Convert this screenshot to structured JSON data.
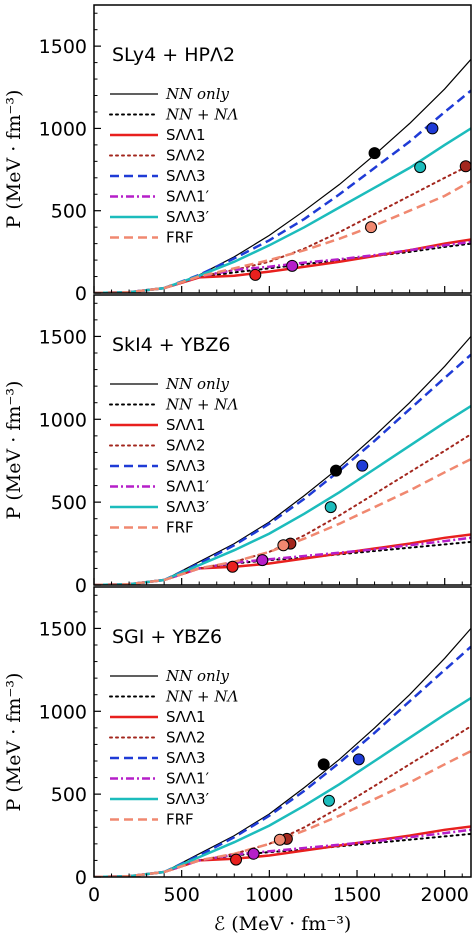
{
  "chart_data": [
    {
      "type": "line",
      "title": "SLy4 + HPΛ2",
      "xlabel": "ℰ (MeV · fm⁻³)",
      "ylabel": "P (MeV · fm⁻³)",
      "xlim": [
        0,
        2150
      ],
      "ylim": [
        0,
        1750
      ],
      "xticks": [
        "0",
        "500",
        "1000",
        "1500",
        "2000"
      ],
      "yticks": [
        "0",
        "500",
        "1000",
        "1500"
      ],
      "legend_position": "left",
      "series": [
        {
          "name": "NN only",
          "color": "#000000",
          "dash": "solid",
          "width": 1.2,
          "x": [
            0,
            200,
            400,
            600,
            800,
            1000,
            1200,
            1400,
            1600,
            1800,
            2000,
            2150
          ],
          "y": [
            0,
            5,
            30,
            110,
            220,
            350,
            500,
            660,
            840,
            1030,
            1240,
            1420
          ],
          "marker": [
            1600,
            850
          ]
        },
        {
          "name": "NN + NΛ",
          "color": "#000000",
          "dash": "dot",
          "width": 2,
          "x": [
            0,
            200,
            400,
            600,
            800,
            1000,
            1200,
            1400,
            1600,
            1800,
            2000,
            2150
          ],
          "y": [
            0,
            5,
            30,
            95,
            125,
            150,
            175,
            200,
            225,
            250,
            280,
            300
          ]
        },
        {
          "name": "SΛΛ1",
          "color": "#e8201e",
          "dash": "solid",
          "width": 2.5,
          "x": [
            0,
            200,
            400,
            600,
            800,
            1000,
            1200,
            1400,
            1600,
            1800,
            2000,
            2150
          ],
          "y": [
            0,
            5,
            30,
            95,
            105,
            130,
            160,
            190,
            225,
            260,
            300,
            325
          ],
          "marker": [
            920,
            110
          ]
        },
        {
          "name": "SΛΛ2",
          "color": "#a3271e",
          "dash": "dot",
          "width": 2,
          "x": [
            0,
            200,
            400,
            600,
            800,
            1000,
            1200,
            1400,
            1600,
            1800,
            2000,
            2150
          ],
          "y": [
            0,
            5,
            30,
            100,
            140,
            190,
            270,
            370,
            480,
            590,
            700,
            780
          ],
          "marker": [
            2120,
            770
          ]
        },
        {
          "name": "SΛΛ3",
          "color": "#1f3bd6",
          "dash": "dash",
          "width": 2.5,
          "x": [
            0,
            200,
            400,
            600,
            800,
            1000,
            1200,
            1400,
            1600,
            1800,
            2000,
            2150
          ],
          "y": [
            0,
            5,
            30,
            110,
            210,
            320,
            450,
            600,
            760,
            920,
            1100,
            1230
          ],
          "marker": [
            1930,
            1000
          ]
        },
        {
          "name": "SΛΛ1′",
          "color": "#b51fc9",
          "dash": "dashdot",
          "width": 2.5,
          "x": [
            0,
            200,
            400,
            600,
            800,
            1000,
            1200,
            1400,
            1600,
            1800,
            2000,
            2150
          ],
          "y": [
            0,
            5,
            30,
            100,
            140,
            160,
            185,
            205,
            230,
            260,
            290,
            310
          ],
          "marker": [
            1130,
            165
          ]
        },
        {
          "name": "SΛΛ3′",
          "color": "#1cbcbc",
          "dash": "solid",
          "width": 2.5,
          "x": [
            0,
            200,
            400,
            600,
            800,
            1000,
            1200,
            1400,
            1600,
            1800,
            2000,
            2150
          ],
          "y": [
            0,
            5,
            30,
            105,
            190,
            290,
            400,
            520,
            640,
            760,
            900,
            1000
          ],
          "marker": [
            1860,
            765
          ]
        },
        {
          "name": "FRF",
          "color": "#f08870",
          "dash": "dash",
          "width": 2.5,
          "x": [
            0,
            200,
            400,
            600,
            800,
            1000,
            1200,
            1400,
            1600,
            1800,
            2000,
            2150
          ],
          "y": [
            0,
            5,
            30,
            100,
            150,
            200,
            260,
            330,
            410,
            500,
            590,
            680
          ],
          "marker": [
            1580,
            400
          ]
        }
      ]
    },
    {
      "type": "line",
      "title": "SkI4 + YBZ6",
      "xlabel": "ℰ (MeV · fm⁻³)",
      "ylabel": "P (MeV · fm⁻³)",
      "xlim": [
        0,
        2150
      ],
      "ylim": [
        0,
        1750
      ],
      "xticks": [
        "0",
        "500",
        "1000",
        "1500",
        "2000"
      ],
      "yticks": [
        "0",
        "500",
        "1000",
        "1500"
      ],
      "legend_position": "left",
      "series": [
        {
          "name": "NN only",
          "color": "#000000",
          "dash": "solid",
          "width": 1.2,
          "x": [
            0,
            200,
            400,
            600,
            800,
            1000,
            1200,
            1400,
            1600,
            1800,
            2000,
            2150
          ],
          "y": [
            0,
            5,
            30,
            140,
            250,
            380,
            540,
            710,
            900,
            1100,
            1320,
            1500
          ],
          "marker": [
            1380,
            690
          ]
        },
        {
          "name": "NN + NΛ",
          "color": "#000000",
          "dash": "dot",
          "width": 2,
          "x": [
            0,
            200,
            400,
            600,
            800,
            1000,
            1200,
            1400,
            1600,
            1800,
            2000,
            2150
          ],
          "y": [
            0,
            5,
            30,
            100,
            130,
            150,
            165,
            185,
            205,
            225,
            245,
            260
          ]
        },
        {
          "name": "SΛΛ1",
          "color": "#e8201e",
          "dash": "solid",
          "width": 2.5,
          "x": [
            0,
            200,
            400,
            600,
            800,
            1000,
            1200,
            1400,
            1600,
            1800,
            2000,
            2150
          ],
          "y": [
            0,
            5,
            30,
            100,
            110,
            130,
            160,
            190,
            220,
            250,
            285,
            305
          ],
          "marker": [
            790,
            110
          ]
        },
        {
          "name": "SΛΛ2",
          "color": "#a3271e",
          "dash": "dot",
          "width": 2,
          "x": [
            0,
            200,
            400,
            600,
            800,
            1000,
            1200,
            1400,
            1600,
            1800,
            2000,
            2150
          ],
          "y": [
            0,
            5,
            30,
            100,
            140,
            200,
            300,
            420,
            550,
            680,
            810,
            910
          ],
          "marker": [
            1120,
            250
          ]
        },
        {
          "name": "SΛΛ3",
          "color": "#1f3bd6",
          "dash": "dash",
          "width": 2.5,
          "x": [
            0,
            200,
            400,
            600,
            800,
            1000,
            1200,
            1400,
            1600,
            1800,
            2000,
            2150
          ],
          "y": [
            0,
            5,
            30,
            130,
            240,
            370,
            520,
            690,
            870,
            1060,
            1250,
            1390
          ],
          "marker": [
            1530,
            720
          ]
        },
        {
          "name": "SΛΛ1′",
          "color": "#b51fc9",
          "dash": "dashdot",
          "width": 2.5,
          "x": [
            0,
            200,
            400,
            600,
            800,
            1000,
            1200,
            1400,
            1600,
            1800,
            2000,
            2150
          ],
          "y": [
            0,
            5,
            30,
            100,
            135,
            155,
            175,
            195,
            215,
            240,
            265,
            285
          ],
          "marker": [
            960,
            150
          ]
        },
        {
          "name": "SΛΛ3′",
          "color": "#1cbcbc",
          "dash": "solid",
          "width": 2.5,
          "x": [
            0,
            200,
            400,
            600,
            800,
            1000,
            1200,
            1400,
            1600,
            1800,
            2000,
            2150
          ],
          "y": [
            0,
            5,
            30,
            120,
            210,
            310,
            430,
            560,
            700,
            840,
            980,
            1080
          ],
          "marker": [
            1350,
            470
          ]
        },
        {
          "name": "FRF",
          "color": "#f08870",
          "dash": "dash",
          "width": 2.5,
          "x": [
            0,
            200,
            400,
            600,
            800,
            1000,
            1200,
            1400,
            1600,
            1800,
            2000,
            2150
          ],
          "y": [
            0,
            5,
            30,
            100,
            140,
            200,
            280,
            370,
            470,
            570,
            680,
            760
          ],
          "marker": [
            1080,
            240
          ]
        }
      ]
    },
    {
      "type": "line",
      "title": "SGI + YBZ6",
      "xlabel": "ℰ (MeV · fm⁻³)",
      "ylabel": "P (MeV · fm⁻³)",
      "xlim": [
        0,
        2150
      ],
      "ylim": [
        0,
        1750
      ],
      "xticks": [
        "0",
        "500",
        "1000",
        "1500",
        "2000"
      ],
      "yticks": [
        "0",
        "500",
        "1000",
        "1500"
      ],
      "legend_position": "left",
      "series": [
        {
          "name": "NN only",
          "color": "#000000",
          "dash": "solid",
          "width": 1.2,
          "x": [
            0,
            200,
            400,
            600,
            800,
            1000,
            1200,
            1400,
            1600,
            1800,
            2000,
            2150
          ],
          "y": [
            0,
            5,
            30,
            140,
            250,
            380,
            540,
            710,
            900,
            1100,
            1320,
            1500
          ],
          "marker": [
            1310,
            680
          ]
        },
        {
          "name": "NN + NΛ",
          "color": "#000000",
          "dash": "dot",
          "width": 2,
          "x": [
            0,
            200,
            400,
            600,
            800,
            1000,
            1200,
            1400,
            1600,
            1800,
            2000,
            2150
          ],
          "y": [
            0,
            5,
            30,
            100,
            130,
            150,
            165,
            185,
            205,
            225,
            245,
            260
          ]
        },
        {
          "name": "SΛΛ1",
          "color": "#e8201e",
          "dash": "solid",
          "width": 2.5,
          "x": [
            0,
            200,
            400,
            600,
            800,
            1000,
            1200,
            1400,
            1600,
            1800,
            2000,
            2150
          ],
          "y": [
            0,
            5,
            30,
            100,
            110,
            130,
            160,
            190,
            220,
            250,
            285,
            305
          ],
          "marker": [
            810,
            105
          ]
        },
        {
          "name": "SΛΛ2",
          "color": "#a3271e",
          "dash": "dot",
          "width": 2,
          "x": [
            0,
            200,
            400,
            600,
            800,
            1000,
            1200,
            1400,
            1600,
            1800,
            2000,
            2150
          ],
          "y": [
            0,
            5,
            30,
            100,
            140,
            200,
            300,
            420,
            550,
            680,
            810,
            910
          ],
          "marker": [
            1100,
            230
          ]
        },
        {
          "name": "SΛΛ3",
          "color": "#1f3bd6",
          "dash": "dash",
          "width": 2.5,
          "x": [
            0,
            200,
            400,
            600,
            800,
            1000,
            1200,
            1400,
            1600,
            1800,
            2000,
            2150
          ],
          "y": [
            0,
            5,
            30,
            130,
            240,
            370,
            520,
            690,
            870,
            1060,
            1250,
            1390
          ],
          "marker": [
            1510,
            710
          ]
        },
        {
          "name": "SΛΛ1′",
          "color": "#b51fc9",
          "dash": "dashdot",
          "width": 2.5,
          "x": [
            0,
            200,
            400,
            600,
            800,
            1000,
            1200,
            1400,
            1600,
            1800,
            2000,
            2150
          ],
          "y": [
            0,
            5,
            30,
            100,
            135,
            155,
            175,
            195,
            215,
            240,
            265,
            285
          ],
          "marker": [
            910,
            140
          ]
        },
        {
          "name": "SΛΛ3′",
          "color": "#1cbcbc",
          "dash": "solid",
          "width": 2.5,
          "x": [
            0,
            200,
            400,
            600,
            800,
            1000,
            1200,
            1400,
            1600,
            1800,
            2000,
            2150
          ],
          "y": [
            0,
            5,
            30,
            120,
            210,
            310,
            430,
            560,
            700,
            840,
            980,
            1080
          ],
          "marker": [
            1340,
            460
          ]
        },
        {
          "name": "FRF",
          "color": "#f08870",
          "dash": "dash",
          "width": 2.5,
          "x": [
            0,
            200,
            400,
            600,
            800,
            1000,
            1200,
            1400,
            1600,
            1800,
            2000,
            2150
          ],
          "y": [
            0,
            5,
            30,
            100,
            140,
            200,
            280,
            370,
            470,
            570,
            680,
            760
          ],
          "marker": [
            1060,
            225
          ]
        }
      ]
    }
  ]
}
